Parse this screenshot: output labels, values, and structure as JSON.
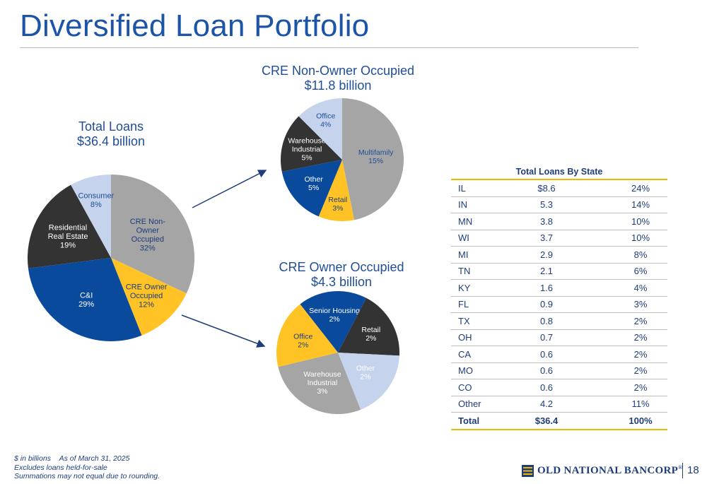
{
  "title": "Diversified Loan Portfolio",
  "colors": {
    "gray": "#a5a5a5",
    "dark": "#333333",
    "navy": "#0a4a9c",
    "gold": "#ffc325",
    "light_blue": "#c5d3ec",
    "title_blue": "#1c54a8",
    "text_navy": "#1f3d7a"
  },
  "chart_data": [
    {
      "type": "pie",
      "title": "Total Loans",
      "subtitle": "$36.4 billion",
      "slices": [
        {
          "label_lines": [
            "CRE Non-",
            "Owner",
            "Occupied"
          ],
          "pct_label": "32%",
          "value": 32,
          "color": "#a5a5a5",
          "text_color": "#1f3d7a"
        },
        {
          "label_lines": [
            "CRE Owner",
            "Occupied"
          ],
          "pct_label": "12%",
          "value": 12,
          "color": "#ffc325",
          "text_color": "#1f3d7a"
        },
        {
          "label_lines": [
            "C&I"
          ],
          "pct_label": "29%",
          "value": 29,
          "color": "#0a4a9c",
          "text_color": "#ffffff"
        },
        {
          "label_lines": [
            "Residential",
            "Real Estate"
          ],
          "pct_label": "19%",
          "value": 19,
          "color": "#333333",
          "text_color": "#ffffff"
        },
        {
          "label_lines": [
            "Consumer"
          ],
          "pct_label": "8%",
          "value": 8,
          "color": "#c5d3ec",
          "text_color": "#1f4e96"
        }
      ]
    },
    {
      "type": "pie",
      "title": "CRE Non-Owner Occupied",
      "subtitle": "$11.8 billion",
      "slices": [
        {
          "label_lines": [
            "Multifamily"
          ],
          "pct_label": "15%",
          "value": 15,
          "color": "#a5a5a5",
          "text_color": "#1f4e96"
        },
        {
          "label_lines": [
            "Retail"
          ],
          "pct_label": "3%",
          "value": 3,
          "color": "#ffc325",
          "text_color": "#1f3d7a"
        },
        {
          "label_lines": [
            "Other"
          ],
          "pct_label": "5%",
          "value": 5,
          "color": "#0a4a9c",
          "text_color": "#ffffff"
        },
        {
          "label_lines": [
            "Warehouse",
            "Industrial"
          ],
          "pct_label": "5%",
          "value": 5,
          "color": "#333333",
          "text_color": "#ffffff"
        },
        {
          "label_lines": [
            "Office"
          ],
          "pct_label": "4%",
          "value": 4,
          "color": "#c5d3ec",
          "text_color": "#1f4e96"
        }
      ]
    },
    {
      "type": "pie",
      "title": "CRE Owner Occupied",
      "subtitle": "$4.3 billion",
      "slices": [
        {
          "label_lines": [
            "Senior Housing"
          ],
          "pct_label": "2%",
          "value": 2,
          "color": "#0a4a9c",
          "text_color": "#ffffff"
        },
        {
          "label_lines": [
            "Retail"
          ],
          "pct_label": "2%",
          "value": 2,
          "color": "#333333",
          "text_color": "#ffffff"
        },
        {
          "label_lines": [
            "Other"
          ],
          "pct_label": "2%",
          "value": 2,
          "color": "#c5d3ec",
          "text_color": "#ffffff"
        },
        {
          "label_lines": [
            "Warehouse",
            "Industrial"
          ],
          "pct_label": "3%",
          "value": 3,
          "color": "#a5a5a5",
          "text_color": "#ffffff"
        },
        {
          "label_lines": [
            "Office"
          ],
          "pct_label": "2%",
          "value": 2,
          "color": "#ffc325",
          "text_color": "#1f3d7a"
        }
      ]
    },
    {
      "type": "table",
      "title": "Total Loans By State",
      "rows": [
        {
          "state": "IL",
          "amount": "$8.6",
          "pct": "24%"
        },
        {
          "state": "IN",
          "amount": "5.3",
          "pct": "14%"
        },
        {
          "state": "MN",
          "amount": "3.8",
          "pct": "10%"
        },
        {
          "state": "WI",
          "amount": "3.7",
          "pct": "10%"
        },
        {
          "state": "MI",
          "amount": "2.9",
          "pct": "8%"
        },
        {
          "state": "TN",
          "amount": "2.1",
          "pct": "6%"
        },
        {
          "state": "KY",
          "amount": "1.6",
          "pct": "4%"
        },
        {
          "state": "FL",
          "amount": "0.9",
          "pct": "3%"
        },
        {
          "state": "TX",
          "amount": "0.8",
          "pct": "2%"
        },
        {
          "state": "OH",
          "amount": "0.7",
          "pct": "2%"
        },
        {
          "state": "CA",
          "amount": "0.6",
          "pct": "2%"
        },
        {
          "state": "MO",
          "amount": "0.6",
          "pct": "2%"
        },
        {
          "state": "CO",
          "amount": "0.6",
          "pct": "2%"
        },
        {
          "state": "Other",
          "amount": "4.2",
          "pct": "11%"
        }
      ],
      "total": {
        "state": "Total",
        "amount": "$36.4",
        "pct": "100%"
      }
    }
  ],
  "footnotes": {
    "units": "$ in billions",
    "as_of": "As of March 31, 2025",
    "line2": "Excludes loans held-for-sale",
    "line3": "Summations may not equal due to rounding."
  },
  "brand": {
    "name": "OLD NATIONAL BANCORP",
    "registered": "®",
    "mark_icon": "old-national-logo-icon"
  },
  "page_number": "18"
}
